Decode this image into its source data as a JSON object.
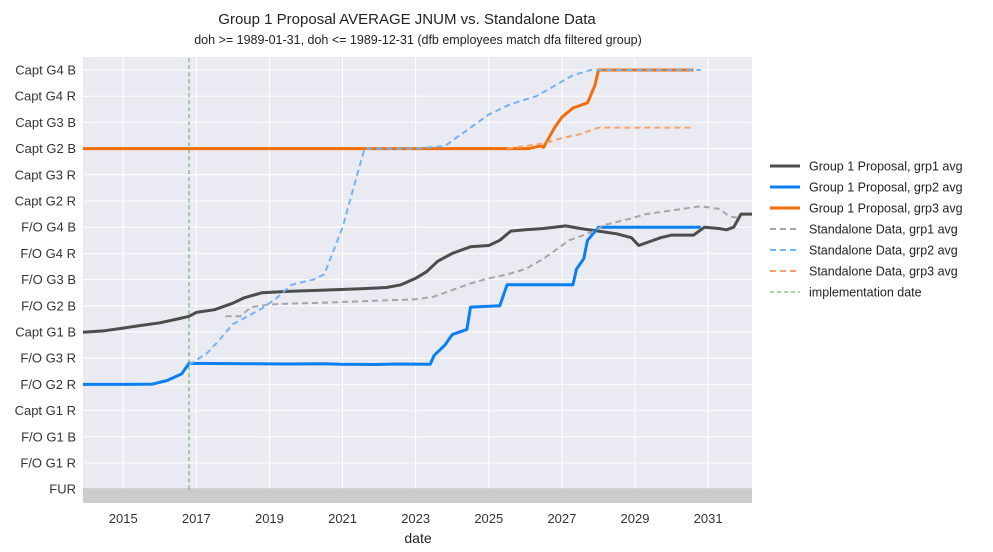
{
  "chart_data": {
    "type": "line",
    "title": "Group 1 Proposal AVERAGE JNUM vs. Standalone Data",
    "subtitle": "doh >= 1989-01-31, doh <= 1989-12-31  (dfb employees match dfa filtered group)",
    "xlabel": "date",
    "ylabel": "",
    "grid": true,
    "legend_position": "right",
    "xlim": [
      2013.9,
      2032.2
    ],
    "x_ticks": [
      "2015",
      "2017",
      "2019",
      "2021",
      "2023",
      "2025",
      "2027",
      "2029",
      "2031"
    ],
    "y_categories": [
      "Capt G4 B",
      "Capt G4 R",
      "Capt G3 B",
      "Capt G2 B",
      "Capt G3 R",
      "Capt G2 R",
      "F/O  G4 B",
      "F/O  G4 R",
      "F/O  G3 B",
      "F/O  G2 B",
      "Capt G1 B",
      "F/O  G3 R",
      "F/O  G2 R",
      "Capt G1 R",
      "F/O  G1 B",
      "F/O  G1 R",
      "FUR"
    ],
    "series": [
      {
        "name": "Group 1 Proposal, grp1 avg",
        "color": "#4d4d4d",
        "style": "solid",
        "x": [
          2013.9,
          2014.5,
          2015.0,
          2015.5,
          2016.0,
          2016.5,
          2016.8,
          2017.0,
          2017.5,
          2018.0,
          2018.3,
          2018.8,
          2019.5,
          2020.5,
          2021.5,
          2022.2,
          2022.6,
          2023.0,
          2023.3,
          2023.6,
          2024.0,
          2024.5,
          2025.0,
          2025.3,
          2025.6,
          2026.0,
          2026.5,
          2027.1,
          2027.5,
          2028.0,
          2028.5,
          2028.9,
          2029.1,
          2029.4,
          2029.7,
          2030.0,
          2030.6,
          2030.9,
          2031.3,
          2031.5,
          2031.7,
          2031.9,
          2032.2
        ],
        "y": [
          5.99,
          6.05,
          6.15,
          6.25,
          6.35,
          6.5,
          6.6,
          6.75,
          6.85,
          7.1,
          7.3,
          7.5,
          7.55,
          7.6,
          7.65,
          7.7,
          7.8,
          8.05,
          8.3,
          8.7,
          9.0,
          9.25,
          9.3,
          9.5,
          9.85,
          9.9,
          9.95,
          10.05,
          9.95,
          9.85,
          9.75,
          9.6,
          9.3,
          9.45,
          9.6,
          9.7,
          9.7,
          10.0,
          9.95,
          9.9,
          10.0,
          10.5,
          10.5
        ]
      },
      {
        "name": "Group 1 Proposal, grp2 avg",
        "color": "#0a7ff0",
        "style": "solid",
        "x": [
          2013.9,
          2015.0,
          2015.8,
          2016.2,
          2016.6,
          2016.8,
          2018.5,
          2019.5,
          2020.5,
          2020.9,
          2021.9,
          2022.5,
          2023.4,
          2023.5,
          2023.8,
          2024.0,
          2024.4,
          2024.5,
          2025.3,
          2025.5,
          2027.3,
          2027.4,
          2027.6,
          2027.7,
          2028.0,
          2030.8
        ],
        "y": [
          4.0,
          4.0,
          4.01,
          4.15,
          4.4,
          4.8,
          4.79,
          4.78,
          4.79,
          4.77,
          4.76,
          4.78,
          4.77,
          5.1,
          5.5,
          5.9,
          6.1,
          6.95,
          7.0,
          7.8,
          7.8,
          8.4,
          8.8,
          9.5,
          10.0,
          10.0
        ]
      },
      {
        "name": "Group 1 Proposal, grp3 avg",
        "color": "#f36e08",
        "style": "solid",
        "x": [
          2013.9,
          2026.1,
          2026.4,
          2026.5,
          2026.8,
          2027.0,
          2027.3,
          2027.7,
          2027.9,
          2028.0,
          2030.6
        ],
        "y": [
          13.0,
          13.0,
          13.1,
          13.05,
          13.8,
          14.2,
          14.55,
          14.75,
          15.4,
          16.0,
          16.0
        ]
      },
      {
        "name": "Standalone Data, grp1 avg",
        "color": "#a6a6a6",
        "style": "dashed",
        "x": [
          2017.8,
          2018.2,
          2018.5,
          2019.0,
          2019.5,
          2020.0,
          2020.5,
          2021.0,
          2021.5,
          2022.0,
          2022.5,
          2023.0,
          2023.5,
          2024.0,
          2024.5,
          2025.0,
          2025.5,
          2026.0,
          2026.5,
          2026.8,
          2027.2,
          2027.8,
          2028.2,
          2028.8,
          2029.3,
          2029.8,
          2030.3,
          2030.8,
          2031.3,
          2031.6,
          2031.9
        ],
        "y": [
          6.6,
          6.6,
          6.95,
          7.05,
          7.08,
          7.1,
          7.12,
          7.15,
          7.17,
          7.2,
          7.22,
          7.25,
          7.35,
          7.6,
          7.85,
          8.05,
          8.2,
          8.4,
          8.8,
          9.1,
          9.5,
          9.8,
          10.1,
          10.3,
          10.5,
          10.6,
          10.7,
          10.8,
          10.7,
          10.4,
          10.35
        ]
      },
      {
        "name": "Standalone Data, grp2 avg",
        "color": "#70b4f8",
        "style": "dashed",
        "x": [
          2016.8,
          2017.3,
          2017.6,
          2018.0,
          2018.4,
          2018.8,
          2019.2,
          2019.6,
          2020.2,
          2020.5,
          2021.0,
          2021.3,
          2021.6,
          2022.2,
          2023.0,
          2023.8,
          2024.5,
          2025.0,
          2025.6,
          2026.3,
          2026.8,
          2027.3,
          2027.8,
          2030.8
        ],
        "y": [
          4.75,
          5.2,
          5.65,
          6.3,
          6.6,
          6.9,
          7.3,
          7.8,
          8.0,
          8.2,
          10.0,
          11.5,
          13.0,
          13.0,
          13.0,
          13.1,
          13.8,
          14.3,
          14.7,
          15.0,
          15.4,
          15.8,
          16.0,
          16.0
        ]
      },
      {
        "name": "Standalone Data, grp3 avg",
        "color": "#f8a36a",
        "style": "dashed",
        "x": [
          2025.5,
          2026.0,
          2026.5,
          2027.0,
          2027.5,
          2028.0,
          2030.6
        ],
        "y": [
          13.0,
          13.1,
          13.2,
          13.4,
          13.55,
          13.8,
          13.8
        ]
      },
      {
        "name": "implementation date",
        "color": "#4caf50",
        "style": "dashed",
        "x": [
          2016.8,
          2016.8
        ],
        "y": [
          0.0,
          16.5
        ]
      }
    ],
    "fur_band_color": "#cccccc"
  }
}
